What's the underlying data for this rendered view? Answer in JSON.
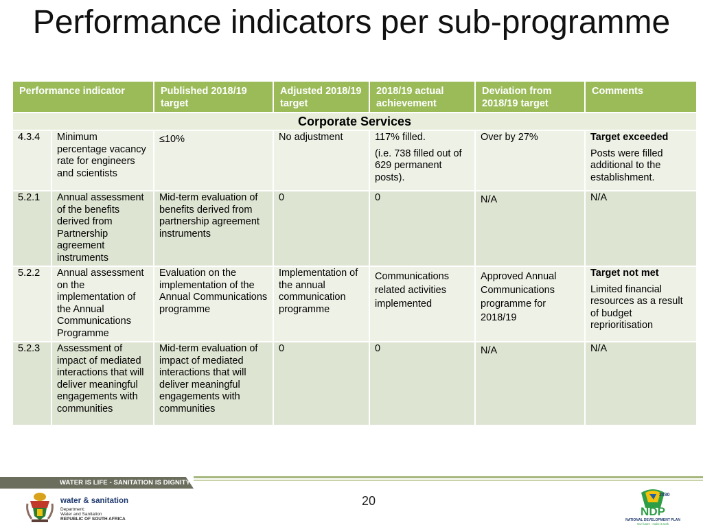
{
  "title": "Performance indicators per sub-programme",
  "table": {
    "headers": [
      "Performance indicator",
      "Published 2018/19 target",
      "Adjusted 2018/19 target",
      "2018/19 actual achievement",
      "Deviation from 2018/19 target",
      "Comments"
    ],
    "section": "Corporate Services",
    "rows": [
      {
        "num": "4.3.4",
        "indicator": "Minimum percentage vacancy rate for engineers and scientists",
        "published": "≤10%",
        "adjusted": "No adjustment",
        "achievement_1": "117% filled.",
        "achievement_2": "(i.e. 738 filled out of 629 permanent posts).",
        "deviation": "Over by 27%",
        "comment_title": "Target exceeded",
        "comment_body": "Posts were filled additional to the establishment."
      },
      {
        "num": "5.2.1",
        "indicator": "Annual assessment of the benefits derived from Partnership agreement instruments",
        "published": "Mid-term evaluation of benefits derived from partnership agreement instruments",
        "adjusted": "0",
        "achievement_1": "0",
        "deviation": "N/A",
        "comment_body": "N/A"
      },
      {
        "num": "5.2.2",
        "indicator": "Annual assessment on the implementation of the Annual Communications Programme",
        "published": "Evaluation on the implementation of the Annual Communications programme",
        "adjusted": "Implementation of the annual communication programme",
        "achievement_1": "Communications related activities implemented",
        "deviation": "Approved Annual Communications programme for 2018/19",
        "comment_title": "Target not met",
        "comment_body": "Limited financial resources as a result of budget reprioritisation"
      },
      {
        "num": "5.2.3",
        "indicator": "Assessment of impact of mediated interactions that will deliver meaningful engagements with communities",
        "published": "Mid-term evaluation of impact of mediated interactions that will deliver meaningful engagements with communities",
        "adjusted": "0",
        "achievement_1": "0",
        "deviation": "N/A",
        "comment_body": "N/A"
      }
    ]
  },
  "footer": {
    "slogan": "WATER IS LIFE - SANITATION IS DIGNITY",
    "page_number": "20",
    "dept_name": "water & sanitation",
    "dept_sub_1": "Department:",
    "dept_sub_2": "Water and Sanitation",
    "dept_sub_3": "REPUBLIC OF SOUTH AFRICA",
    "ndp_logo_text": "NDP",
    "ndp_year": "2030",
    "ndp_caption": "NATIONAL DEVELOPMENT PLAN",
    "ndp_tagline": "Our future - make it work"
  },
  "colors": {
    "header_green": "#9bbb59",
    "row_light": "#eef1e6",
    "row_dark": "#dde4d2",
    "band_dark": "#6b6e5d",
    "dept_blue": "#1f3a6e"
  }
}
